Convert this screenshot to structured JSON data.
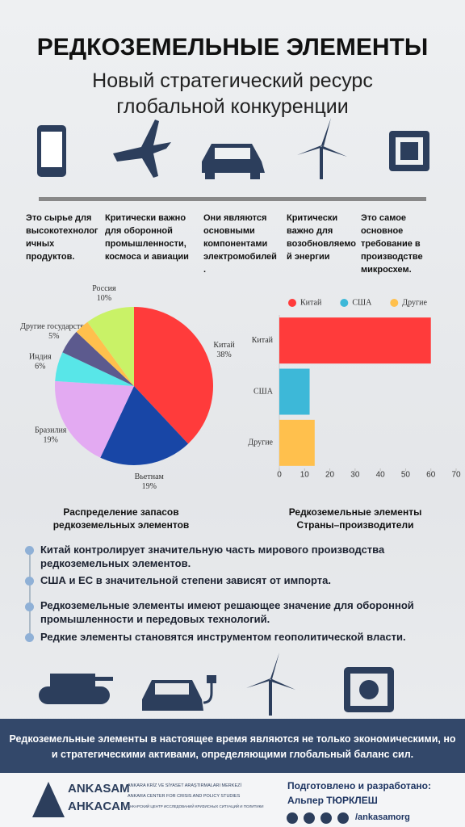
{
  "header": {
    "title": "РЕДКОЗЕМЕЛЬНЫЕ ЭЛЕМЕНТЫ",
    "subtitle": [
      "Новый стратегический ресурс",
      "глобальной конкуренции"
    ]
  },
  "uses": [
    "Это сырье для высокотехнологичных продуктов.",
    "Критически важно для оборонной промышленности, космоса и авиации",
    "Они являются основными компонентами электромобилей.",
    "Критически важно для возобновляемой энергии",
    "Это самое основное требование в производстве микросхем."
  ],
  "chart_data": [
    {
      "type": "pie",
      "title": "Распределение запасов редкоземельных элементов",
      "categories": [
        "Китай",
        "Вьетнам",
        "Бразилия",
        "Индия",
        "Другие государства",
        null,
        "Россия"
      ],
      "values": [
        38,
        19,
        19,
        6,
        5,
        3,
        10
      ],
      "value_labels": [
        "38%",
        "19%",
        "19%",
        "6%",
        "5%",
        null,
        "10%"
      ],
      "colors": [
        "#ff3b3b",
        "#1846a6",
        "#e3aaf2",
        "#58e6e8",
        "#5c5a8e",
        "#ffc04d",
        "#c9f267"
      ]
    },
    {
      "type": "bar",
      "orientation": "horizontal",
      "title": "Редкоземельные элементы Страны–производители",
      "categories": [
        "Китай",
        "США",
        "Другие"
      ],
      "series": [
        {
          "name": "Китай",
          "color": "#ff3b3b",
          "values": [
            60,
            null,
            null
          ]
        },
        {
          "name": "США",
          "color": "#3db8d8",
          "values": [
            null,
            12,
            null
          ]
        },
        {
          "name": "Другие",
          "color": "#ffc04d",
          "values": [
            null,
            null,
            14
          ]
        }
      ],
      "xlim": [
        0,
        70
      ],
      "xticks": [
        0,
        10,
        20,
        30,
        40,
        50,
        60,
        70
      ],
      "legend": "top"
    }
  ],
  "bullets": [
    "Китай контролирует значительную часть мирового производства редкоземельных элементов.",
    "США и ЕС в значительной степени зависят от импорта.",
    "Редкоземельные элементы имеют решающее значение для оборонной промышленности и передовых технологий.",
    "Редкие элементы становятся инструментом геополитической власти."
  ],
  "banner": "Редкоземельные элементы в настоящее время являются не только экономическими, но и стратегическими активами, определяющими глобальный баланс сил.",
  "org": {
    "name_latin": "ANKASAM",
    "name_cyrillic": "AHKACAM",
    "lines": [
      "ANKARA KRİZ VE SİYASET ARAŞTIRMALARI MERKEZİ",
      "ANKARA CENTER FOR CRISIS AND POLICY STUDIES",
      "АНКАРСКИЙ ЦЕНТР ИССЛЕДОВАНИЙ КРИЗИСНЫХ СИТУАЦИЙ И ПОЛИТИКИ"
    ]
  },
  "credit": {
    "label": "Подготовлено и разработано:",
    "author": "Альпер ТЮРКЛЕШ",
    "handle": "/ankasamorg"
  }
}
